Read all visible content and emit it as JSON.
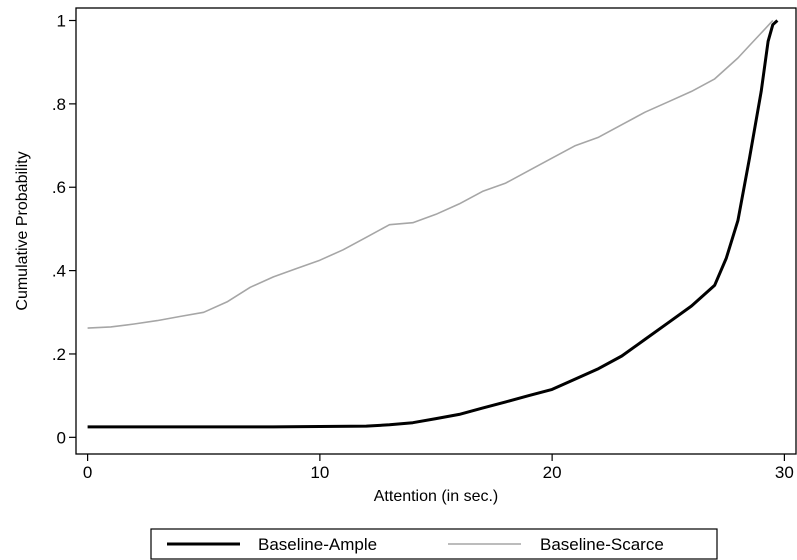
{
  "chart_data": {
    "type": "line",
    "xlabel": "Attention (in sec.)",
    "ylabel": "Cumulative Probability",
    "xlim": [
      -0.5,
      30.5
    ],
    "ylim": [
      -0.04,
      1.03
    ],
    "xticks": [
      {
        "value": 0,
        "label": "0"
      },
      {
        "value": 10,
        "label": "10"
      },
      {
        "value": 20,
        "label": "20"
      },
      {
        "value": 30,
        "label": "30"
      }
    ],
    "yticks": [
      {
        "value": 0,
        "label": "0"
      },
      {
        "value": 0.2,
        "label": ".2"
      },
      {
        "value": 0.4,
        "label": ".4"
      },
      {
        "value": 0.6,
        "label": ".6"
      },
      {
        "value": 0.8,
        "label": ".8"
      },
      {
        "value": 1,
        "label": "1"
      }
    ],
    "grid": false,
    "legend_position": "bottom",
    "series": [
      {
        "name": "Baseline-Ample",
        "color": "#000000",
        "x": [
          0,
          8,
          10,
          12,
          13,
          14,
          15,
          16,
          17,
          18,
          19,
          20,
          21,
          22,
          23,
          24,
          25,
          26,
          27,
          27.5,
          28,
          28.5,
          29,
          29.3,
          29.5,
          29.7
        ],
        "y": [
          0.025,
          0.025,
          0.026,
          0.027,
          0.03,
          0.035,
          0.045,
          0.055,
          0.07,
          0.085,
          0.1,
          0.115,
          0.14,
          0.165,
          0.195,
          0.235,
          0.275,
          0.315,
          0.365,
          0.43,
          0.52,
          0.67,
          0.83,
          0.95,
          0.99,
          1.0
        ]
      },
      {
        "name": "Baseline-Scarce",
        "color": "#a6a6a6",
        "x": [
          0,
          1,
          2,
          3,
          4,
          5,
          6,
          7,
          8,
          9,
          10,
          11,
          12,
          13,
          14,
          15,
          16,
          17,
          18,
          19,
          20,
          21,
          22,
          23,
          24,
          25,
          26,
          27,
          28,
          28.5,
          29,
          29.5
        ],
        "y": [
          0.262,
          0.265,
          0.272,
          0.28,
          0.29,
          0.3,
          0.325,
          0.36,
          0.385,
          0.405,
          0.425,
          0.45,
          0.48,
          0.51,
          0.515,
          0.535,
          0.56,
          0.59,
          0.61,
          0.64,
          0.67,
          0.7,
          0.72,
          0.75,
          0.78,
          0.805,
          0.83,
          0.86,
          0.91,
          0.94,
          0.97,
          1.0
        ]
      }
    ]
  }
}
